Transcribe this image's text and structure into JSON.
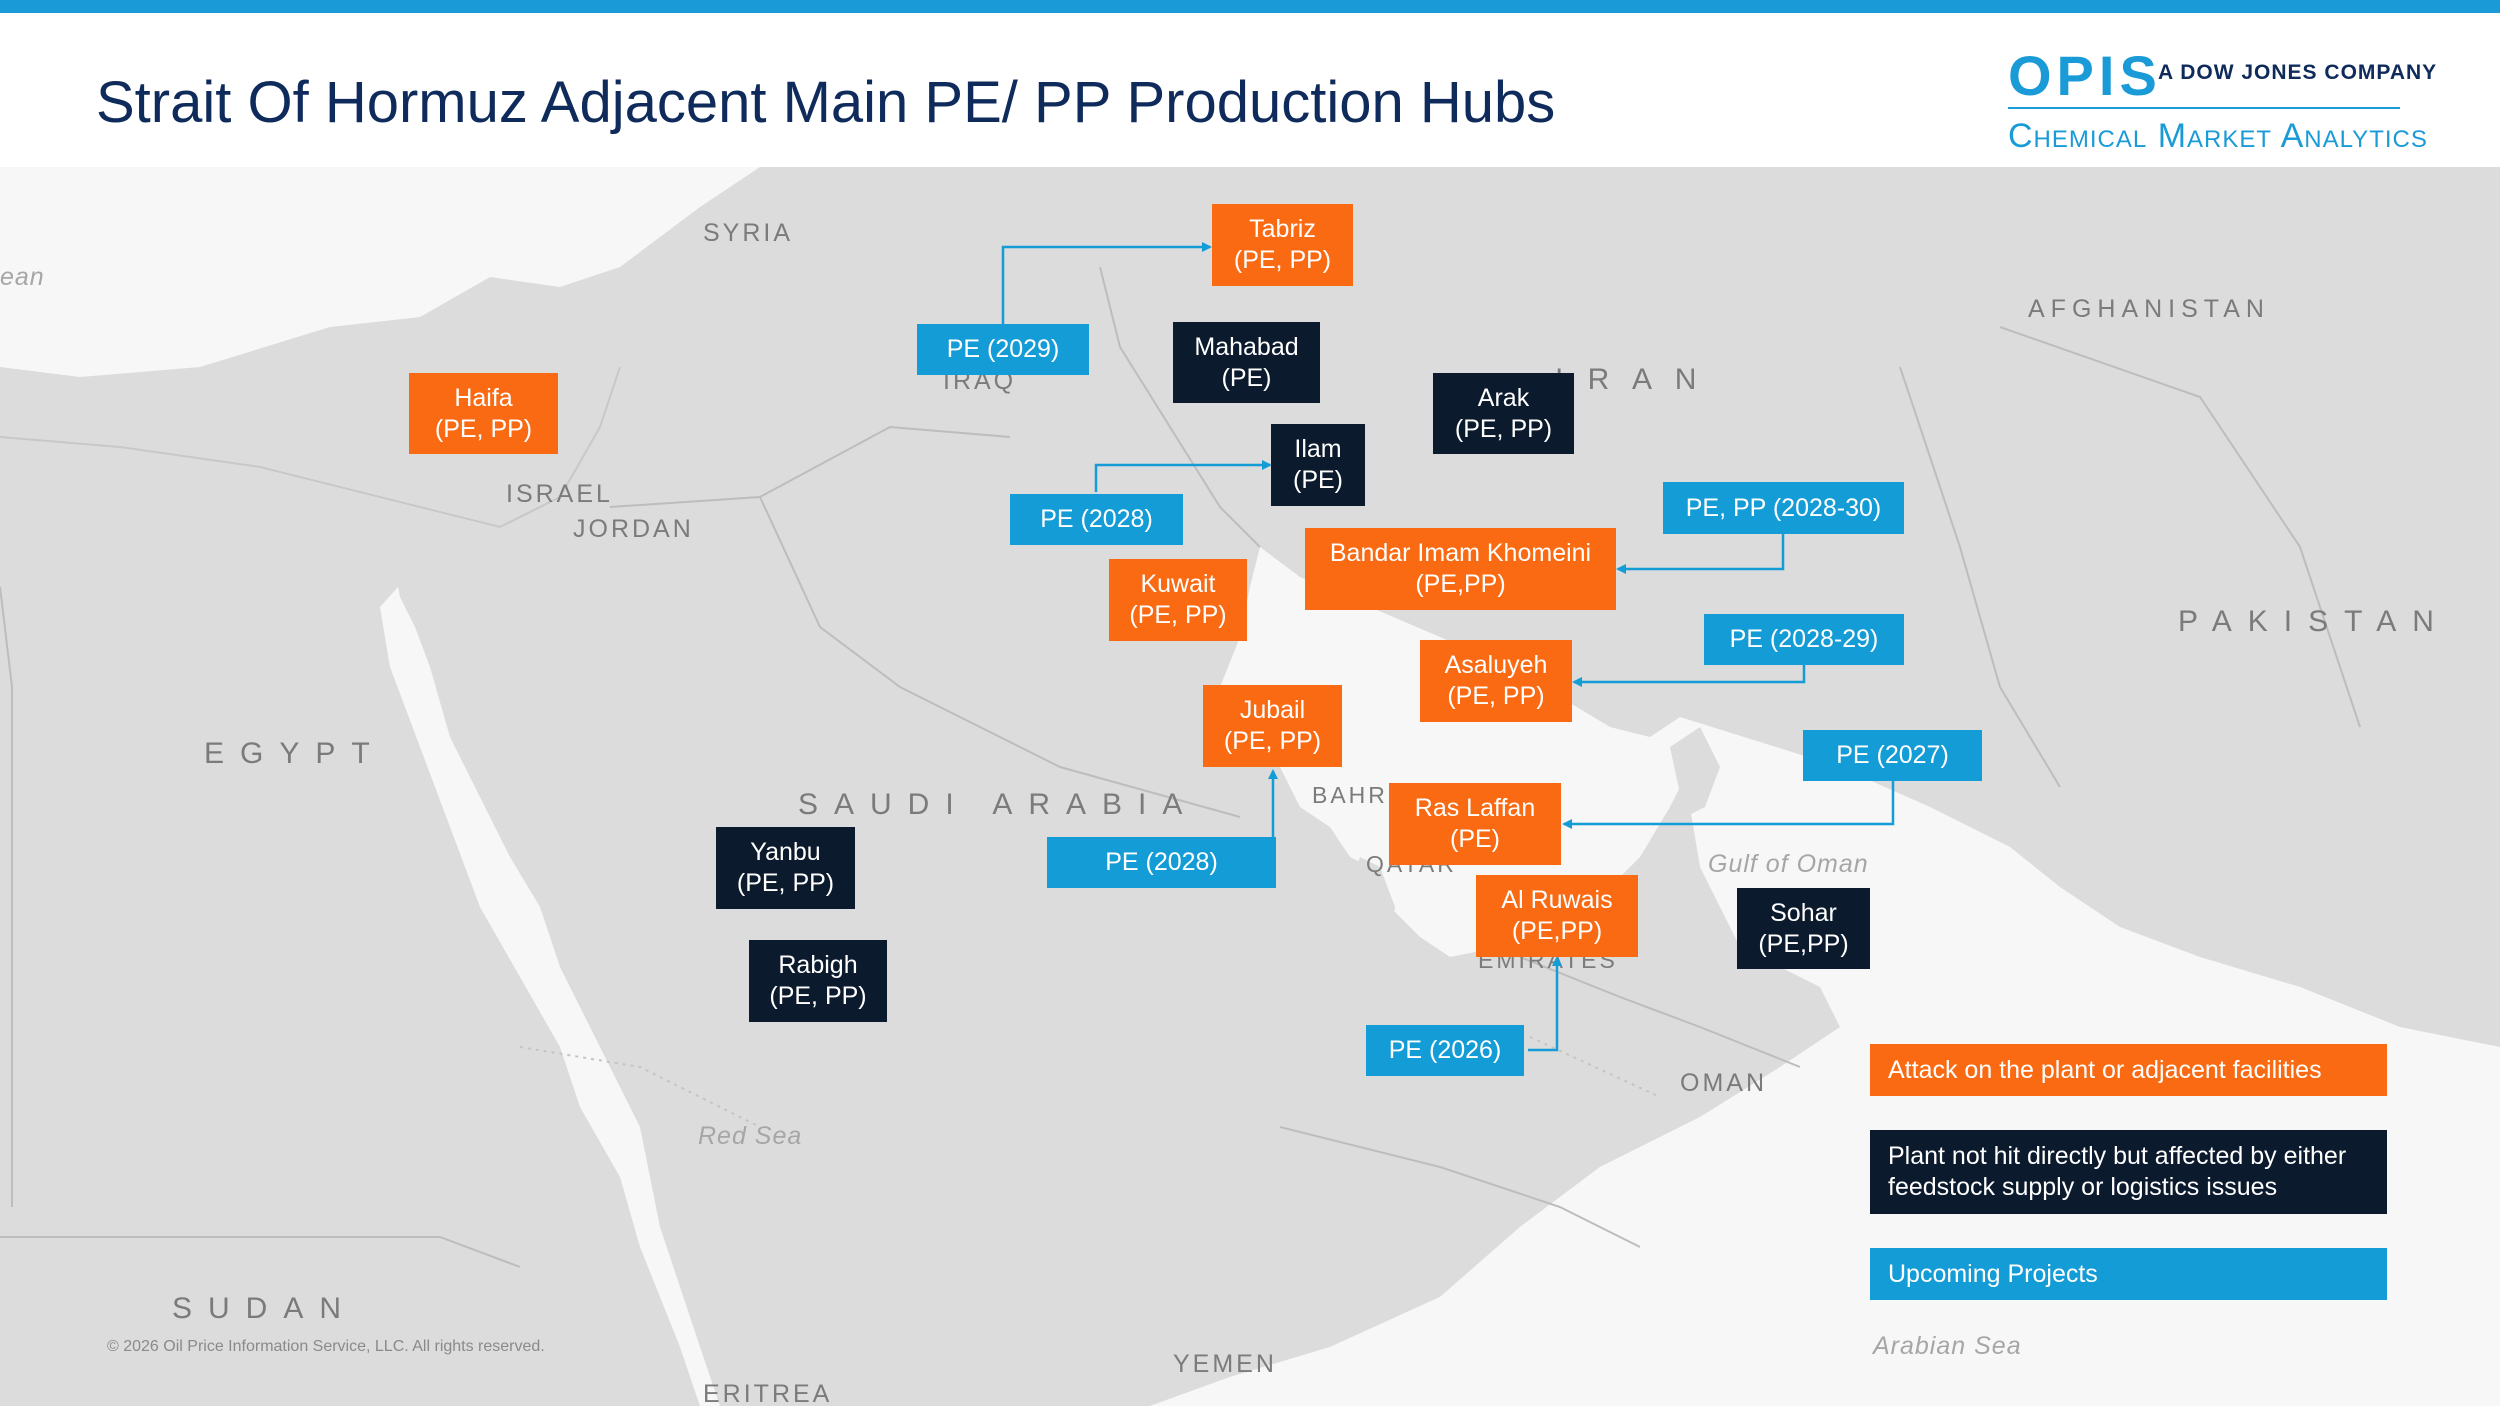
{
  "title": "Strait Of Hormuz Adjacent Main PE/ PP Production Hubs",
  "logo": {
    "opis": "OPIS",
    "company": "A DOW JONES COMPANY",
    "division": "Chemical Market Analytics"
  },
  "colors": {
    "attack": "#f96a12",
    "affected": "#0c1a2e",
    "upcoming": "#149cd6",
    "accent": "#1a9bd7",
    "title": "#0f2b5b",
    "land": "#dcdcdc",
    "water": "#f7f7f7"
  },
  "map_labels": {
    "syria": "SYRIA",
    "iraq": "IRAQ",
    "iran": "I R A N",
    "afghanistan": "AFGHANISTAN",
    "pakistan": "PAKISTAN",
    "israel": "ISRAEL",
    "jordan": "JORDAN",
    "egypt": "EGYPT",
    "saudi_arabia": "SAUDI ARABIA",
    "bahrain": "BAHR",
    "qatar": "QATAR",
    "emirates": "EMIRATES",
    "oman": "OMAN",
    "sudan": "SUDAN",
    "yemen": "YEMEN",
    "eritrea": "ERITREA",
    "red_sea": "Red Sea",
    "gulf_of_oman": "Gulf of Oman",
    "arabian_sea": "Arabian Sea",
    "mediterranean": "ean"
  },
  "hubs": {
    "tabriz": {
      "name": "Tabriz",
      "products": "(PE, PP)",
      "status": "attack"
    },
    "haifa": {
      "name": "Haifa",
      "products": "(PE, PP)",
      "status": "attack"
    },
    "mahabad": {
      "name": "Mahabad",
      "products": "(PE)",
      "status": "affected"
    },
    "arak": {
      "name": "Arak",
      "products": "(PE, PP)",
      "status": "affected"
    },
    "ilam": {
      "name": "Ilam",
      "products": "(PE)",
      "status": "affected"
    },
    "bandar": {
      "name": "Bandar Imam Khomeini",
      "products": "(PE,PP)",
      "status": "attack"
    },
    "kuwait": {
      "name": "Kuwait",
      "products": "(PE, PP)",
      "status": "attack"
    },
    "asaluyeh": {
      "name": "Asaluyeh",
      "products": "(PE, PP)",
      "status": "attack"
    },
    "jubail": {
      "name": "Jubail",
      "products": "(PE, PP)",
      "status": "attack"
    },
    "ras_laffan": {
      "name": "Ras Laffan",
      "products": "(PE)",
      "status": "attack"
    },
    "al_ruwais": {
      "name": "Al Ruwais",
      "products": "(PE,PP)",
      "status": "attack"
    },
    "yanbu": {
      "name": "Yanbu",
      "products": "(PE, PP)",
      "status": "affected"
    },
    "rabigh": {
      "name": "Rabigh",
      "products": "(PE, PP)",
      "status": "affected"
    },
    "sohar": {
      "name": "Sohar",
      "products": "(PE,PP)",
      "status": "affected"
    }
  },
  "projects": {
    "tabriz_2029": "PE (2029)",
    "ilam_2028": "PE (2028)",
    "bandar_2028_30": "PE, PP (2028-30)",
    "asaluyeh_2028_29": "PE (2028-29)",
    "ras_laffan_2027": "PE (2027)",
    "jubail_2028": "PE (2028)",
    "al_ruwais_2026": "PE (2026)"
  },
  "legend": {
    "attack": "Attack on the plant or adjacent facilities",
    "affected": "Plant not hit directly but affected by either feedstock supply or logistics issues",
    "upcoming": "Upcoming Projects"
  },
  "copyright": "© 2026 Oil Price Information Service, LLC. All rights reserved."
}
